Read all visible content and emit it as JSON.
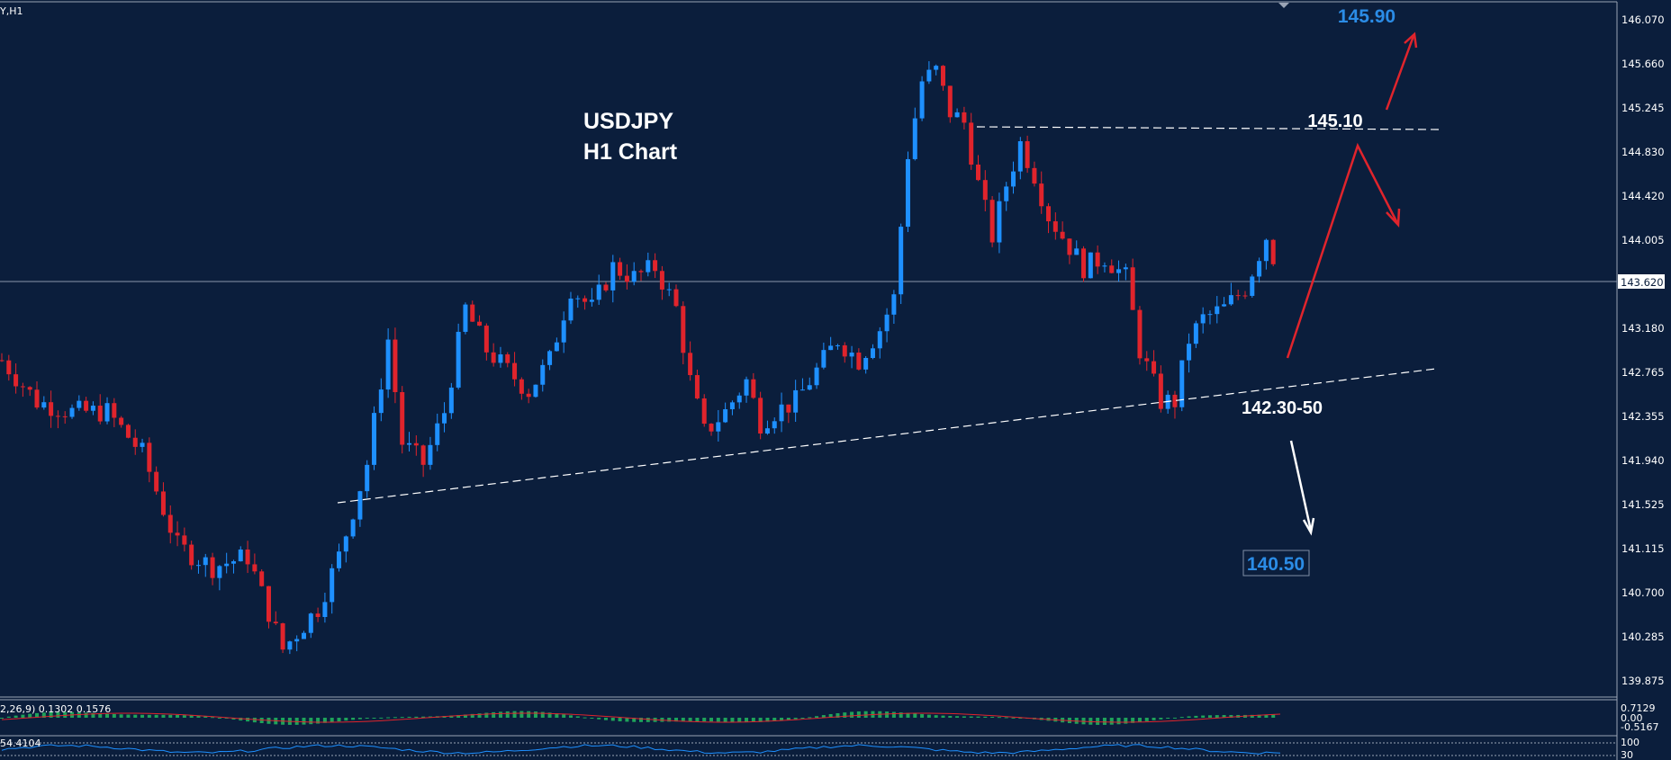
{
  "chart_data": {
    "type": "candlestick",
    "symbol_label": "Y,H1",
    "title": "USDJPY",
    "subtitle": "H1 Chart",
    "price_ticks": [
      "146.070",
      "145.660",
      "145.245",
      "144.830",
      "144.420",
      "144.005",
      "143.180",
      "142.765",
      "142.355",
      "141.940",
      "141.525",
      "141.115",
      "140.700",
      "140.285",
      "139.875"
    ],
    "current_price": "143.620",
    "y_range": [
      139.6,
      146.2
    ],
    "levels": {
      "target_high": "145.90",
      "resistance": "145.10",
      "support": "142.30-50",
      "target_low": "140.50"
    },
    "candles_close_path": [
      [
        0,
        142.8
      ],
      [
        5,
        142.4
      ],
      [
        10,
        142.3
      ],
      [
        15,
        142.3
      ],
      [
        20,
        141.9
      ],
      [
        25,
        141.0
      ],
      [
        30,
        140.8
      ],
      [
        35,
        140.9
      ],
      [
        40,
        140.0
      ],
      [
        45,
        140.4
      ],
      [
        48,
        140.9
      ],
      [
        52,
        141.8
      ],
      [
        55,
        143.0
      ],
      [
        57,
        142.0
      ],
      [
        60,
        141.8
      ],
      [
        63,
        142.3
      ],
      [
        66,
        143.3
      ],
      [
        69,
        142.9
      ],
      [
        72,
        142.7
      ],
      [
        75,
        142.5
      ],
      [
        78,
        142.8
      ],
      [
        81,
        143.5
      ],
      [
        84,
        143.3
      ],
      [
        87,
        143.7
      ],
      [
        90,
        143.6
      ],
      [
        93,
        143.7
      ],
      [
        96,
        143.3
      ],
      [
        98,
        142.6
      ],
      [
        100,
        142.1
      ],
      [
        103,
        142.3
      ],
      [
        106,
        142.6
      ],
      [
        108,
        142.2
      ],
      [
        110,
        142.3
      ],
      [
        113,
        142.4
      ],
      [
        116,
        142.7
      ],
      [
        119,
        143.0
      ],
      [
        122,
        142.8
      ],
      [
        125,
        143.1
      ],
      [
        127,
        143.4
      ],
      [
        129,
        144.8
      ],
      [
        131,
        145.5
      ],
      [
        133,
        145.6
      ],
      [
        135,
        145.2
      ],
      [
        137,
        145.1
      ],
      [
        139,
        144.5
      ],
      [
        141,
        144.0
      ],
      [
        143,
        144.5
      ],
      [
        145,
        144.9
      ],
      [
        147,
        144.6
      ],
      [
        149,
        144.2
      ],
      [
        151,
        144.0
      ],
      [
        154,
        143.7
      ],
      [
        157,
        143.8
      ],
      [
        160,
        143.6
      ],
      [
        162,
        142.9
      ],
      [
        165,
        142.4
      ],
      [
        167,
        142.4
      ],
      [
        169,
        143.0
      ],
      [
        171,
        143.2
      ],
      [
        174,
        143.3
      ],
      [
        177,
        143.5
      ],
      [
        180,
        144.0
      ],
      [
        182,
        143.6
      ]
    ],
    "indicators": {
      "macd_label": "2,26,9) 0.1302 0.1576",
      "macd_ticks": [
        "0.7129",
        "0.00",
        "-0.5167"
      ],
      "rsi_label": "54.4104",
      "rsi_ticks": [
        "100",
        "30"
      ]
    },
    "colors": {
      "background": "#0b1e3c",
      "bull": "#1e90ff",
      "bear": "#e0242c",
      "histogram": "#1fa35a",
      "signal": "#e0242c"
    }
  }
}
